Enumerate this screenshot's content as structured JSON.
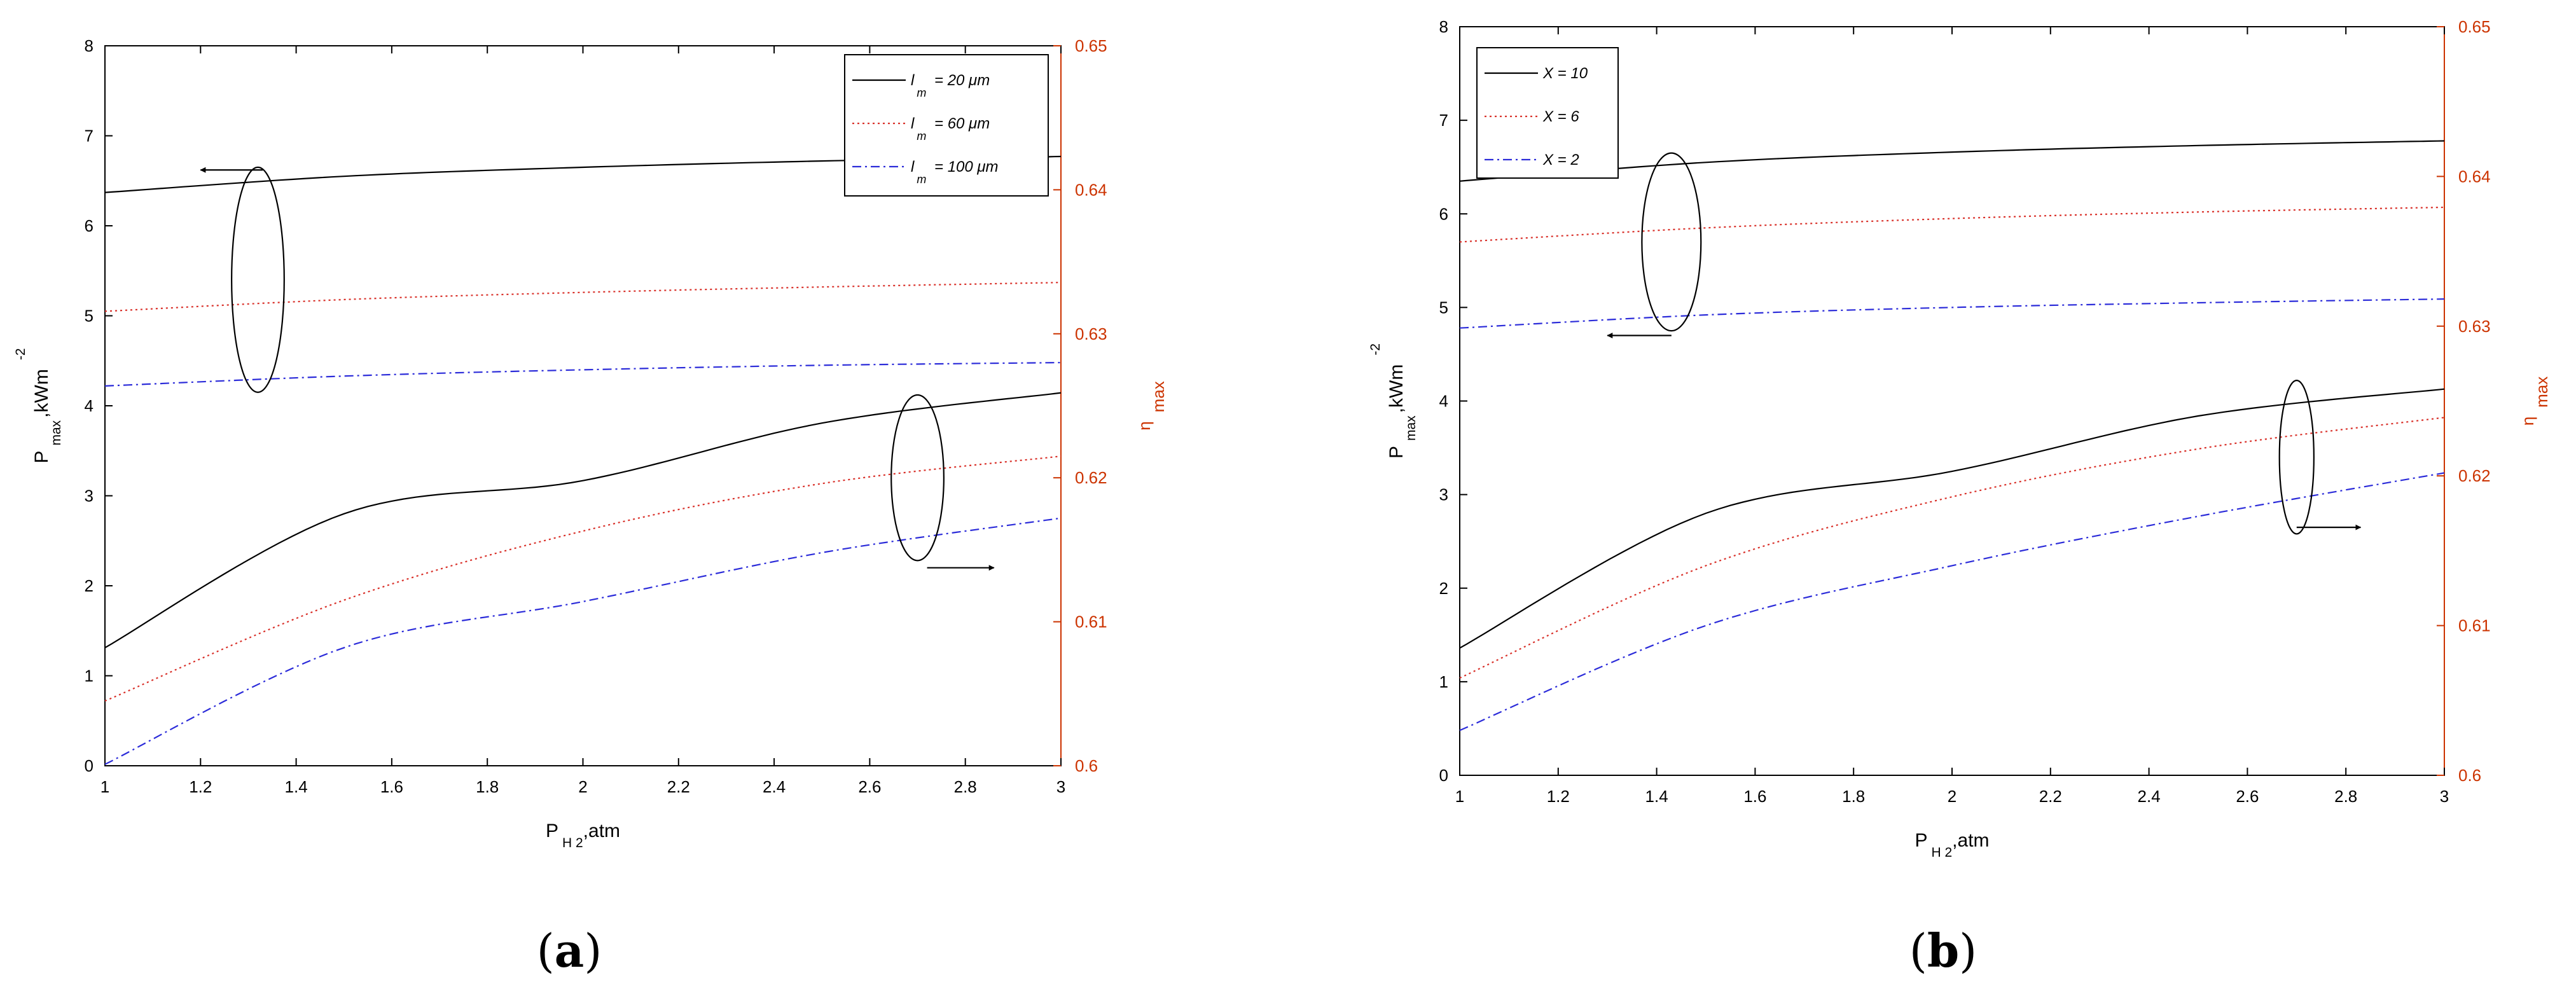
{
  "colors": {
    "black": "#000000",
    "red": "#d9312a",
    "blue": "#2b2bd9",
    "right_axis": "#cc3300"
  },
  "left_ticks": [
    "0",
    "1",
    "2",
    "3",
    "4",
    "5",
    "6",
    "7",
    "8"
  ],
  "right_ticks": [
    "0.6",
    "0.61",
    "0.62",
    "0.63",
    "0.64",
    "0.65"
  ],
  "x_ticks": [
    "1",
    "1.2",
    "1.4",
    "1.6",
    "1.8",
    "2",
    "2.2",
    "2.4",
    "2.6",
    "2.8",
    "3"
  ],
  "panels": {
    "a": {
      "open": "(",
      "letter": "a",
      "close": ")"
    },
    "b": {
      "open": "(",
      "letter": "b",
      "close": ")"
    }
  },
  "chart_data": [
    {
      "type": "line",
      "panel": "a",
      "xlabel": {
        "main": "P",
        "sub": "H 2",
        "rest": ",atm"
      },
      "ylabel_left": {
        "main": "P",
        "sub": "max",
        "rest": ",kWm",
        "sup": "-2"
      },
      "ylabel_right": {
        "main": "η",
        "sub": "max"
      },
      "xlim": [
        1,
        3
      ],
      "ylim_left": [
        0,
        8
      ],
      "ylim_right": [
        0.6,
        0.65
      ],
      "legend_position": "top-right",
      "legend": [
        {
          "main": "l",
          "sub": "m",
          "rest": " = 20 μm",
          "color": "#000000",
          "dash": "solid"
        },
        {
          "main": "l",
          "sub": "m",
          "rest": " = 60 μm",
          "color": "#d9312a",
          "dash": "dotted"
        },
        {
          "main": "l",
          "sub": "m",
          "rest": " = 100 μm",
          "color": "#2b2bd9",
          "dash": "dashdot"
        }
      ],
      "series": [
        {
          "axis": "left",
          "style": 0,
          "x": [
            1,
            1.5,
            2,
            2.5,
            3
          ],
          "values": [
            6.37,
            6.55,
            6.65,
            6.72,
            6.77
          ]
        },
        {
          "axis": "left",
          "style": 1,
          "x": [
            1,
            1.5,
            2,
            2.5,
            3
          ],
          "values": [
            5.05,
            5.18,
            5.26,
            5.32,
            5.37
          ]
        },
        {
          "axis": "left",
          "style": 2,
          "x": [
            1,
            1.5,
            2,
            2.5,
            3
          ],
          "values": [
            4.22,
            4.33,
            4.4,
            4.45,
            4.48
          ]
        },
        {
          "axis": "right",
          "style": 0,
          "x": [
            1,
            1.5,
            2,
            2.5,
            3
          ],
          "values": [
            0.6082,
            0.6175,
            0.6198,
            0.6238,
            0.6259
          ]
        },
        {
          "axis": "right",
          "style": 1,
          "x": [
            1,
            1.5,
            2,
            2.5,
            3
          ],
          "values": [
            0.6045,
            0.6115,
            0.6163,
            0.6196,
            0.6215
          ]
        },
        {
          "axis": "right",
          "style": 2,
          "x": [
            1,
            1.5,
            2,
            2.5,
            3
          ],
          "values": [
            0.6001,
            0.6082,
            0.6114,
            0.6148,
            0.6172
          ]
        }
      ],
      "annotations": [
        {
          "ellipse": [
            1.32,
            5.4,
            0.055,
            1.25
          ],
          "arrow_from": [
            1.33,
            6.62
          ],
          "arrow_to": [
            1.2,
            6.62
          ]
        },
        {
          "ellipse": [
            2.7,
            3.2,
            0.055,
            0.92
          ],
          "arrow_from": [
            2.72,
            2.2
          ],
          "arrow_to": [
            2.86,
            2.2
          ]
        }
      ]
    },
    {
      "type": "line",
      "panel": "b",
      "xlabel": {
        "main": "P",
        "sub": "H 2",
        "rest": ",atm"
      },
      "ylabel_left": {
        "main": "P",
        "sub": "max",
        "rest": ",kWm",
        "sup": "-2"
      },
      "ylabel_right": {
        "main": "η",
        "sub": "max"
      },
      "xlim": [
        1,
        3
      ],
      "ylim_left": [
        0,
        8
      ],
      "ylim_right": [
        0.6,
        0.65
      ],
      "legend_position": "top-left",
      "legend": [
        {
          "main": "X = 10",
          "color": "#000000",
          "dash": "solid"
        },
        {
          "main": "X = 6",
          "color": "#d9312a",
          "dash": "dotted"
        },
        {
          "main": "X = 2",
          "color": "#2b2bd9",
          "dash": "dashdot"
        }
      ],
      "series": [
        {
          "axis": "left",
          "style": 0,
          "x": [
            1,
            1.5,
            2,
            2.5,
            3
          ],
          "values": [
            6.35,
            6.55,
            6.66,
            6.73,
            6.78
          ]
        },
        {
          "axis": "left",
          "style": 1,
          "x": [
            1,
            1.5,
            2,
            2.5,
            3
          ],
          "values": [
            5.7,
            5.85,
            5.95,
            6.02,
            6.07
          ]
        },
        {
          "axis": "left",
          "style": 2,
          "x": [
            1,
            1.5,
            2,
            2.5,
            3
          ],
          "values": [
            4.78,
            4.92,
            5.0,
            5.05,
            5.09
          ]
        },
        {
          "axis": "right",
          "style": 0,
          "x": [
            1,
            1.5,
            2,
            2.5,
            3
          ],
          "values": [
            0.6085,
            0.6175,
            0.6203,
            0.624,
            0.6258
          ]
        },
        {
          "axis": "right",
          "style": 1,
          "x": [
            1,
            1.5,
            2,
            2.5,
            3
          ],
          "values": [
            0.6065,
            0.614,
            0.6186,
            0.6218,
            0.6239
          ]
        },
        {
          "axis": "right",
          "style": 2,
          "x": [
            1,
            1.5,
            2,
            2.5,
            3
          ],
          "values": [
            0.603,
            0.61,
            0.614,
            0.6173,
            0.6202
          ]
        }
      ],
      "annotations": [
        {
          "ellipse": [
            1.43,
            5.7,
            0.06,
            0.95
          ],
          "arrow_from": [
            1.43,
            4.7
          ],
          "arrow_to": [
            1.3,
            4.7
          ]
        },
        {
          "ellipse": [
            2.7,
            3.4,
            0.035,
            0.82
          ],
          "arrow_from": [
            2.7,
            2.65
          ],
          "arrow_to": [
            2.83,
            2.65
          ]
        }
      ]
    }
  ]
}
